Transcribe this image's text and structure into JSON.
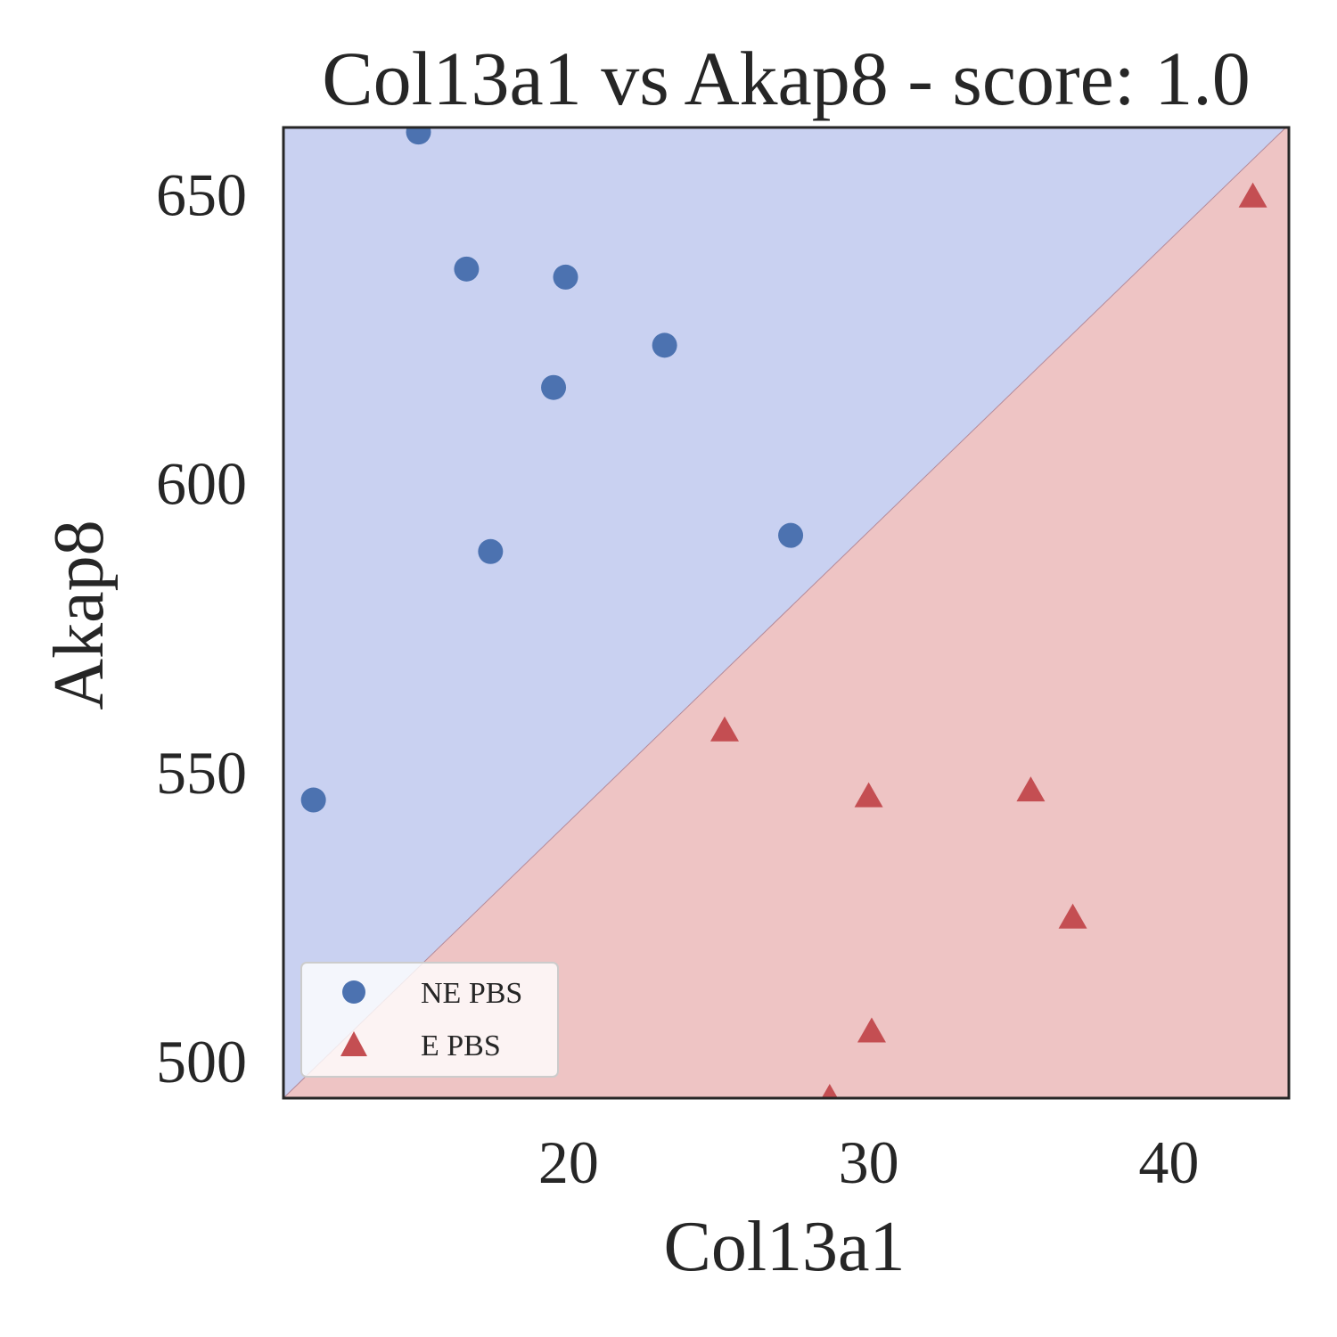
{
  "chart_data": {
    "type": "scatter",
    "title": "Col13a1 vs Akap8 - score: 1.0",
    "xlabel": "Col13a1",
    "ylabel": "Akap8",
    "xlim": [
      10.5,
      44.0
    ],
    "ylim": [
      493.5,
      661.5
    ],
    "xticks": [
      20,
      30,
      40
    ],
    "yticks": [
      500,
      550,
      600,
      650
    ],
    "grid": false,
    "legend_position": "lower-left",
    "decision_boundary": {
      "points": [
        [
          10.5,
          493.5
        ],
        [
          43.9,
          661.5
        ]
      ],
      "upper_region_color": "#c9d1f1",
      "lower_region_color": "#eec4c4"
    },
    "series": [
      {
        "name": "NE PBS",
        "marker": "circle",
        "color": "#4c72b0",
        "points": [
          [
            15.0,
            660.7
          ],
          [
            16.6,
            637.0
          ],
          [
            19.9,
            635.6
          ],
          [
            23.2,
            623.8
          ],
          [
            19.5,
            616.5
          ],
          [
            27.4,
            590.9
          ],
          [
            17.4,
            588.1
          ],
          [
            11.5,
            545.1
          ]
        ]
      },
      {
        "name": "E PBS",
        "marker": "triangle",
        "color": "#c44e52",
        "points": [
          [
            42.8,
            649.5
          ],
          [
            25.2,
            557.1
          ],
          [
            30.0,
            545.7
          ],
          [
            35.4,
            546.7
          ],
          [
            36.8,
            524.7
          ],
          [
            30.1,
            505.0
          ],
          [
            28.7,
            493.5
          ]
        ]
      }
    ]
  }
}
